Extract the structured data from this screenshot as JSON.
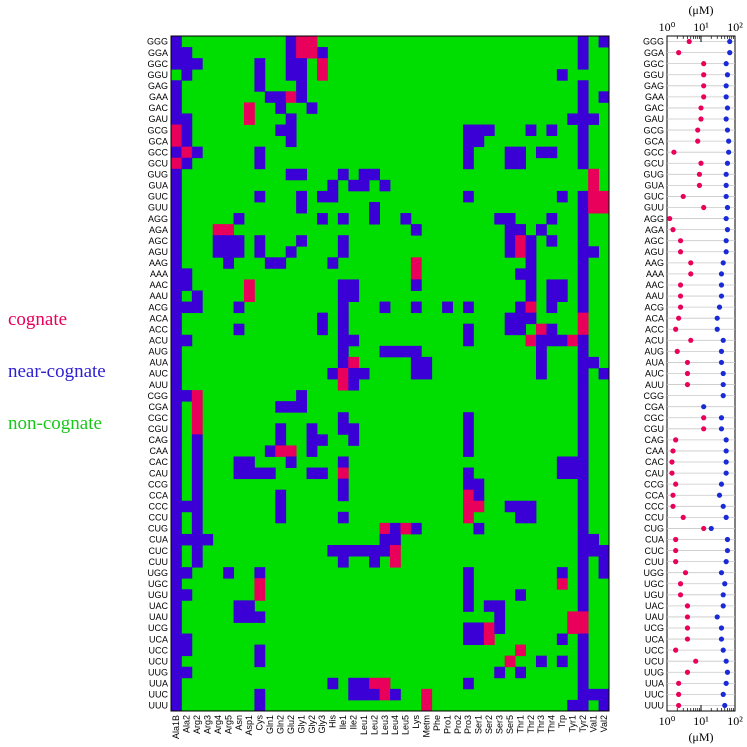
{
  "colors": {
    "cognate": "#e8005a",
    "near_cognate": "#3a00d6",
    "non_cognate": "#00dd00"
  },
  "legend": [
    {
      "label": "cognate",
      "color": "#e8005a"
    },
    {
      "label": "near-cognate",
      "color": "#2d1fd0"
    },
    {
      "label": "non-cognate",
      "color": "#18c818"
    }
  ],
  "chart_data": [
    {
      "type": "heatmap",
      "rows": [
        "GGG",
        "GGA",
        "GGC",
        "GGU",
        "GAG",
        "GAA",
        "GAC",
        "GAU",
        "GCG",
        "GCA",
        "GCC",
        "GCU",
        "GUG",
        "GUA",
        "GUC",
        "GUU",
        "AGG",
        "AGA",
        "AGC",
        "AGU",
        "AAG",
        "AAA",
        "AAC",
        "AAU",
        "ACG",
        "ACA",
        "ACC",
        "ACU",
        "AUG",
        "AUA",
        "AUC",
        "AUU",
        "CGG",
        "CGA",
        "CGC",
        "CGU",
        "CAG",
        "CAA",
        "CAC",
        "CAU",
        "CCG",
        "CCA",
        "CCC",
        "CCU",
        "CUG",
        "CUA",
        "CUC",
        "CUU",
        "UGG",
        "UGC",
        "UGU",
        "UAC",
        "UAU",
        "UCG",
        "UCA",
        "UCC",
        "UCU",
        "UUG",
        "UUA",
        "UUC",
        "UUU"
      ],
      "columns": [
        "Ala1B",
        "Ala2",
        "Arg2",
        "Arg3",
        "Arg4",
        "Arg5",
        "Asn",
        "Asp1",
        "Cys",
        "Gln1",
        "Gln2",
        "Glu2",
        "Gly1",
        "Gly2",
        "Gly3",
        "His",
        "Ile1",
        "Ile2",
        "Leu1",
        "Leu2",
        "Leu3",
        "Leu4",
        "Leu5",
        "Lys",
        "Metm",
        "Phe",
        "Pro1",
        "Pro2",
        "Pro3",
        "Ser1",
        "Ser2",
        "Ser3",
        "Ser5",
        "Thr1",
        "Thr2",
        "Thr3",
        "Thr4",
        "Trp",
        "Tyr1",
        "Tyr2",
        "Val1",
        "Val2"
      ],
      "categories": {
        "0": "non-cognate",
        "1": "near-cognate",
        "2": "cognate"
      },
      "values": [
        "100000000001220000000000000000000000000101",
        "110000000001221000000000000000000000000100",
        "111000001001102000000000000000000000000100",
        "010000001001102000000000000000000000010000",
        "100000001000100000000000000000000000000100",
        "100000000112100000000000000000000000000101",
        "100000020010010000000000000000000000000100",
        "110000020001000000000000000000000000001110",
        "210000000011000000000000000011100010100100",
        "210000000001000000000000000011000000000100",
        "121000001000000000000000000010001101100100",
        "210000001000000000000000000010001100000100",
        "100000000001100010110000000000000000000020",
        "100000000000000101101000000000000000000020",
        "100000001000101100000000000010000000010122",
        "100000000000100000010000000000000000000122",
        "100000100000001010010010000000011000100100",
        "100022000000000000000001000000001101000100",
        "100011101000100010000000000000001210100100",
        "100011101001000010000000000000001210000110",
        "100001000110000100000002000000000010000100",
        "110000000000000000000002000000000110000100",
        "110000020000000011000001000000000010110100",
        "101000020000000011000000000000000010110100",
        "111000100000000010001001001010000120100100",
        "100000000000001010000000000000001110000200",
        "100000100000001010000000000010001102100200",
        "110000000000000011000000000010000021112100",
        "100000000000000010001111000000000001000100",
        "100000000000000012000001100000000001000110",
        "100000000000000121100001100000000001000101",
        "100000000000000021000000000000000000000100",
        "112000000000100000000000000000000000000100",
        "102000000011100000000000000000000000000100",
        "102000000000000010000000000010000000000100",
        "102000000010010011000000000010000000000100",
        "101000000010011001000000000010000000000100",
        "101000000122010000000000000010000000000100",
        "101000110001000010000000000000000000011100",
        "101000111100011020000000000010000000011100",
        "101000000000000010000000000011000000000100",
        "101000000010000010000000000021000000000100",
        "111000000010000000000000000022001110000100",
        "101000000010000010000000000020000110000100",
        "101000000000000000002121000001000000000100",
        "111100000000000000001100000000000000000110",
        "101000000000000111111200000000000000000111",
        "101000000000000010010200000000000000000101",
        "110001001000000000000000000010000000010101",
        "100000002000000000000000000010000000020100",
        "110000002000000000000000000010000100000100",
        "100000110000000000000000000010110000000100",
        "100000111000000000000000000000010000002200",
        "100000000000000000000000000011210000002200",
        "110000000000000000000000000011200000010100",
        "110000001000000000000000000000000200000100",
        "100000001000000000000000000000002001010100",
        "110000000000000000000000000000010100000100",
        "100000000000000101122000000010000000000100",
        "100000001000000001112100200000000000000111",
        "100000001000000000000000200000000000001101"
      ]
    },
    {
      "type": "scatter",
      "x_label": "(μM)",
      "x_scale": "log",
      "xlim": [
        1,
        100
      ],
      "x_ticks": [
        "10⁰",
        "10¹",
        "10²"
      ],
      "grid": "horizontal lines per codon",
      "categories": [
        "GGG",
        "GGA",
        "GGC",
        "GGU",
        "GAG",
        "GAA",
        "GAC",
        "GAU",
        "GCG",
        "GCA",
        "GCC",
        "GCU",
        "GUG",
        "GUA",
        "GUC",
        "GUU",
        "AGG",
        "AGA",
        "AGC",
        "AGU",
        "AAG",
        "AAA",
        "AAC",
        "AAU",
        "ACG",
        "ACA",
        "ACC",
        "ACU",
        "AUG",
        "AUA",
        "AUC",
        "AUU",
        "CGG",
        "CGA",
        "CGC",
        "CGU",
        "CAG",
        "CAA",
        "CAC",
        "CAU",
        "CCG",
        "CCA",
        "CCC",
        "CCU",
        "CUG",
        "CUA",
        "CUC",
        "CUU",
        "UGG",
        "UGC",
        "UGU",
        "UAC",
        "UAU",
        "UCG",
        "UCA",
        "UCC",
        "UCU",
        "UUG",
        "UUA",
        "UUC",
        "UUU"
      ],
      "series": [
        {
          "color": "#e8005a",
          "values": [
            4.5,
            2.2,
            12,
            12,
            12,
            12,
            10,
            10,
            8,
            8,
            1.6,
            10,
            9,
            9,
            3,
            12,
            1.2,
            1.5,
            2.5,
            2.5,
            5,
            5,
            2.5,
            2.5,
            2.5,
            2.2,
            1.8,
            5,
            2,
            4,
            4,
            4,
            null,
            null,
            12,
            12,
            1.8,
            1.5,
            1.4,
            1.4,
            1.8,
            1.5,
            1.5,
            3,
            12,
            1.8,
            1.8,
            1.8,
            3.5,
            2.5,
            2.5,
            4,
            4,
            4,
            4,
            1.8,
            7,
            4,
            2.2,
            2.2,
            2.2
          ]
        },
        {
          "color": "#1a2ad6",
          "values": [
            70,
            70,
            55,
            60,
            55,
            55,
            60,
            55,
            60,
            65,
            65,
            60,
            55,
            55,
            55,
            60,
            55,
            60,
            55,
            55,
            45,
            40,
            40,
            40,
            35,
            30,
            30,
            45,
            40,
            40,
            45,
            45,
            45,
            12,
            40,
            40,
            55,
            55,
            55,
            55,
            40,
            35,
            45,
            55,
            20,
            60,
            60,
            55,
            40,
            50,
            45,
            45,
            30,
            40,
            40,
            45,
            55,
            60,
            55,
            45,
            50
          ]
        }
      ]
    }
  ]
}
